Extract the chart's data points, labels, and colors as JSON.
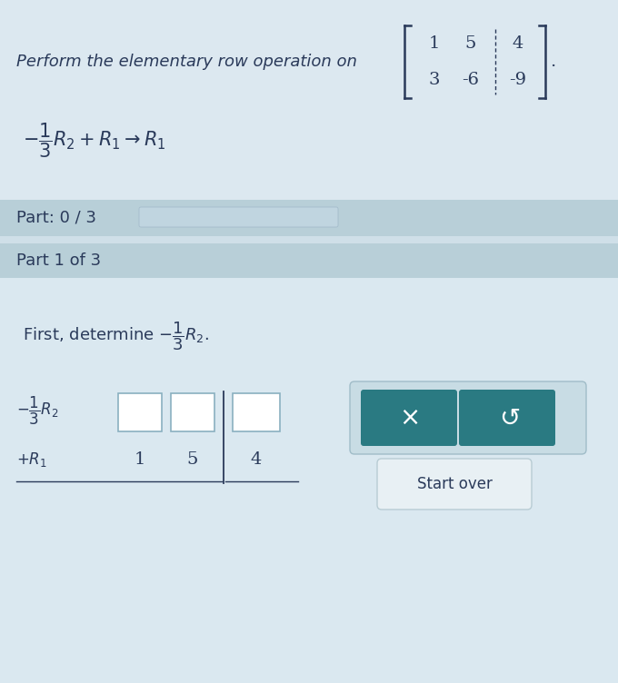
{
  "bg_color": "#cfdfe8",
  "panel_bg": "#b8cfd8",
  "content_bg": "#dae8f0",
  "white": "#ffffff",
  "dark_teal": "#2a7a82",
  "teal_border": "#3a9aaa",
  "font_color": "#2a3a5a",
  "matrix_color": "#2a3a5a",
  "title_text": "Perform the elementary row operation on",
  "matrix_rows": [
    [
      "1",
      "5",
      "4"
    ],
    [
      "3",
      "-6",
      "-9"
    ]
  ],
  "part_label": "Part: 0 / 3",
  "part1_label": "Part 1 of 3",
  "row2_values": [
    "1",
    "5",
    "4"
  ],
  "start_over_label": "Start over",
  "prog_bar_color": "#c0d5e0",
  "box_border": "#8ab0c0",
  "start_btn_border": "#b0c8d0"
}
